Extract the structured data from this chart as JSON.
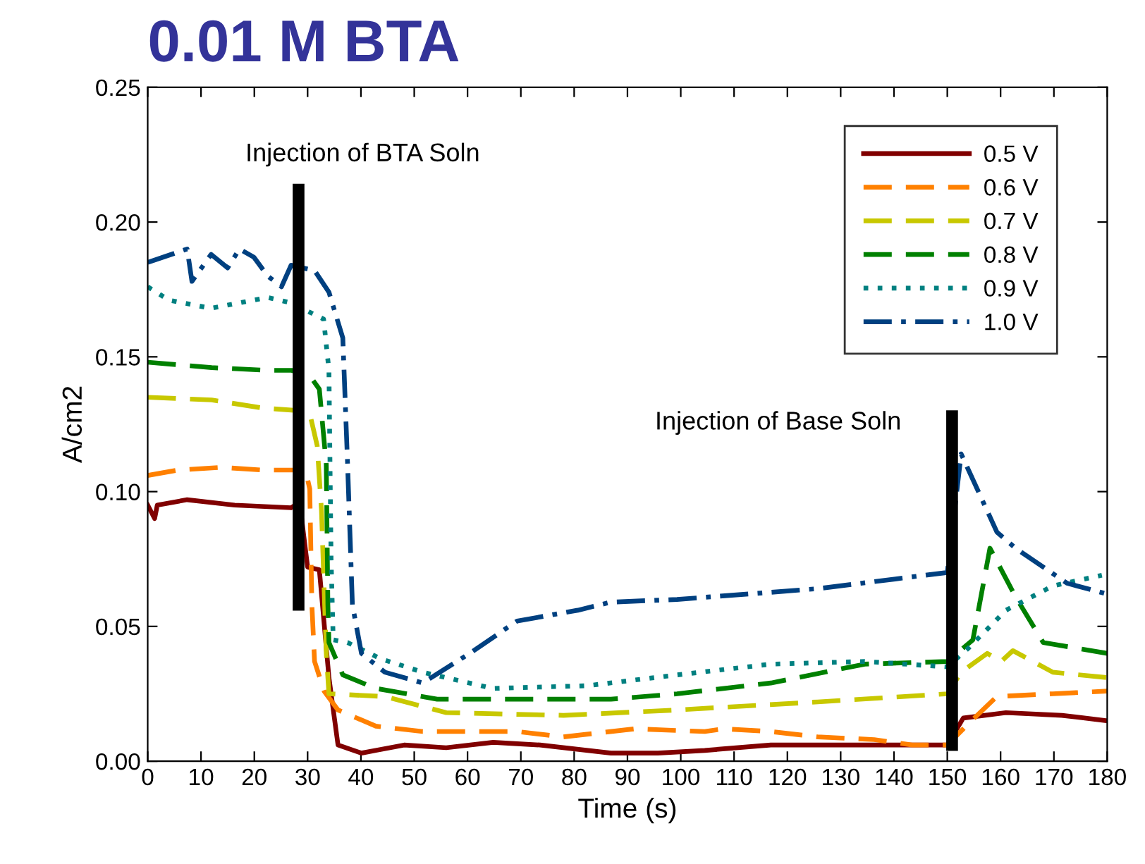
{
  "chart_data": {
    "type": "line",
    "title": "0.01 M BTA",
    "xlabel": "Time (s)",
    "ylabel": "A/cm2",
    "xlim": [
      0,
      180
    ],
    "xticks": [
      0,
      10,
      20,
      30,
      40,
      50,
      60,
      70,
      80,
      90,
      100,
      110,
      120,
      130,
      140,
      150,
      160,
      170,
      180
    ],
    "ylim": [
      0,
      0.25
    ],
    "yticks": [
      {
        "value": 0,
        "label": "0.00"
      },
      {
        "value": 0.05,
        "label": "0.05"
      },
      {
        "value": 0.1,
        "label": "0.10"
      },
      {
        "value": 0.15,
        "label": "0.15"
      },
      {
        "value": 0.2,
        "label": "0.20"
      },
      {
        "value": 0.25,
        "label": "0.25"
      }
    ],
    "grid": false,
    "legend": "top right",
    "marker": "none",
    "annotations": [
      "Injection of BTA Soln",
      "Injection of Base Soln"
    ],
    "series": [
      {
        "name": "0.5 V",
        "color": "#800000",
        "line_style": "solid",
        "x": [
          0,
          1.3,
          1.8,
          7.4,
          16.3,
          26.9,
          28.5,
          30,
          32.2,
          34,
          35.7,
          40.1,
          42.8,
          48.1,
          56,
          64.8,
          73.6,
          86.9,
          95.7,
          104.5,
          116.9,
          134.5,
          150,
          153,
          161,
          171.5,
          180
        ],
        "values": [
          0.095,
          0.09,
          0.095,
          0.097,
          0.095,
          0.094,
          0.096,
          0.072,
          0.071,
          0.031,
          0.006,
          0.003,
          0.004,
          0.006,
          0.005,
          0.007,
          0.006,
          0.003,
          0.003,
          0.004,
          0.006,
          0.006,
          0.006,
          0.016,
          0.018,
          0.017,
          0.015
        ]
      },
      {
        "name": "0.6 V",
        "color": "#ff8000",
        "line_style": "dashed",
        "x": [
          0,
          5.7,
          13.8,
          21.6,
          29.6,
          30.4,
          30.8,
          31.3,
          33.1,
          35.7,
          42.8,
          51.6,
          69.3,
          78,
          91.3,
          104.5,
          108,
          116.9,
          125.7,
          136.3,
          143.4,
          150,
          154,
          159.3,
          169.8,
          180
        ],
        "values": [
          0.106,
          0.108,
          0.109,
          0.108,
          0.108,
          0.101,
          0.058,
          0.037,
          0.026,
          0.019,
          0.013,
          0.011,
          0.011,
          0.009,
          0.012,
          0.011,
          0.012,
          0.011,
          0.009,
          0.008,
          0.006,
          0.006,
          0.014,
          0.024,
          0.025,
          0.026
        ]
      },
      {
        "name": "0.7 V",
        "color": "#c8c800",
        "line_style": "dashed",
        "x": [
          0,
          12,
          21.6,
          28.7,
          30.4,
          31.8,
          32.6,
          33.5,
          34,
          44.5,
          56,
          78,
          99.3,
          125.7,
          150,
          152.6,
          157.5,
          160.1,
          162.3,
          169.8,
          180
        ],
        "values": [
          0.135,
          0.134,
          0.131,
          0.13,
          0.129,
          0.117,
          0.093,
          0.04,
          0.025,
          0.024,
          0.018,
          0.017,
          0.019,
          0.022,
          0.025,
          0.033,
          0.04,
          0.037,
          0.041,
          0.033,
          0.031
        ]
      },
      {
        "name": "0.8 V",
        "color": "#008000",
        "line_style": "dashed",
        "x": [
          0,
          12,
          22.5,
          27,
          30.4,
          32.2,
          33.5,
          33.8,
          34,
          36.6,
          42.8,
          54.3,
          69.3,
          86.9,
          99.3,
          116.9,
          134.5,
          150,
          154.8,
          158,
          162.8,
          168,
          180
        ],
        "values": [
          0.148,
          0.146,
          0.145,
          0.145,
          0.143,
          0.138,
          0.11,
          0.058,
          0.044,
          0.032,
          0.027,
          0.023,
          0.023,
          0.023,
          0.025,
          0.029,
          0.036,
          0.037,
          0.045,
          0.079,
          0.061,
          0.044,
          0.04
        ]
      },
      {
        "name": "0.9 V",
        "color": "#008080",
        "line_style": "dotted",
        "x": [
          0,
          4,
          11.9,
          22.5,
          26.9,
          33,
          34,
          34.4,
          34.8,
          37.5,
          43.7,
          51.6,
          64.8,
          82.5,
          99.3,
          116.9,
          134.5,
          150,
          154,
          161,
          169.8,
          179
        ],
        "values": [
          0.176,
          0.171,
          0.168,
          0.172,
          0.17,
          0.164,
          0.145,
          0.075,
          0.045,
          0.044,
          0.038,
          0.033,
          0.027,
          0.028,
          0.032,
          0.036,
          0.037,
          0.035,
          0.042,
          0.056,
          0.065,
          0.069
        ]
      },
      {
        "name": "1.0 V",
        "color": "#004080",
        "line_style": "dashdot",
        "x": [
          0,
          7.4,
          8.3,
          11.9,
          15,
          17.2,
          19.9,
          22.5,
          25.1,
          26.9,
          31.3,
          34,
          36.6,
          37.5,
          38.4,
          40.1,
          44.5,
          51.6,
          60.4,
          69.3,
          80.7,
          86.9,
          99.3,
          125.7,
          150,
          152.6,
          159.3,
          162.8,
          172.5,
          180
        ],
        "values": [
          0.185,
          0.19,
          0.178,
          0.188,
          0.183,
          0.19,
          0.187,
          0.18,
          0.176,
          0.184,
          0.182,
          0.174,
          0.157,
          0.11,
          0.058,
          0.04,
          0.033,
          0.029,
          0.04,
          0.052,
          0.056,
          0.059,
          0.06,
          0.064,
          0.07,
          0.114,
          0.085,
          0.079,
          0.066,
          0.062
        ]
      },
      {
        "color": "#000000",
        "line_style": "solid",
        "x": [
          28.3,
          28.3
        ],
        "values": [
          0.058,
          0.212
        ]
      },
      {
        "color": "#000000",
        "line_style": "solid",
        "x": [
          150.9,
          150.9
        ],
        "values": [
          0.006,
          0.128
        ]
      }
    ]
  }
}
